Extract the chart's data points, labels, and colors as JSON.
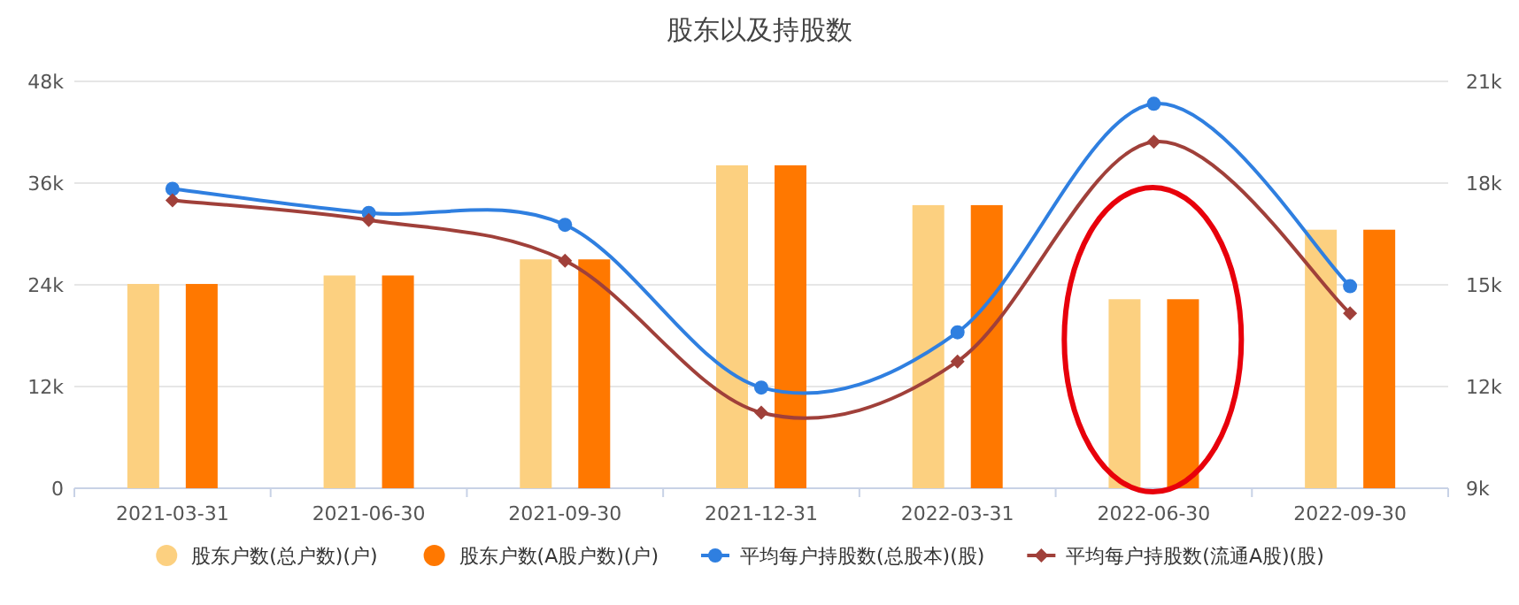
{
  "chart_data": {
    "type": "bar",
    "title": "股东以及持股数",
    "categories": [
      "2021-03-31",
      "2021-06-30",
      "2021-09-30",
      "2021-12-31",
      "2022-03-31",
      "2022-06-30",
      "2022-09-30"
    ],
    "series": [
      {
        "name": "股东户数(总户数)(户)",
        "color": "#fcd080",
        "values": [
          24100,
          25100,
          27000,
          38100,
          33400,
          22300,
          30500
        ]
      },
      {
        "name": "股东户数(A股户数)(户)",
        "color": "#ff7800",
        "values": [
          24100,
          25100,
          27000,
          38100,
          33400,
          22300,
          30500
        ]
      },
      {
        "name": "平均每户持股数(总股本)(股)",
        "type": "line",
        "axis": "y2",
        "marker": "circle",
        "color": "#2f7fe0",
        "values": [
          17830,
          17120,
          16770,
          11970,
          13600,
          20340,
          14960
        ]
      },
      {
        "name": "平均每户持股数(流通A股)(股)",
        "type": "line",
        "axis": "y2",
        "marker": "diamond",
        "color": "#a0403a",
        "values": [
          17490,
          16910,
          15710,
          11230,
          12740,
          19220,
          14160
        ]
      }
    ],
    "ylim": [
      0,
      48000
    ],
    "yticks": [
      {
        "value": 0,
        "label": "0"
      },
      {
        "value": 12000,
        "label": "12k"
      },
      {
        "value": 24000,
        "label": "24k"
      },
      {
        "value": 36000,
        "label": "36k"
      },
      {
        "value": 48000,
        "label": "48k"
      }
    ],
    "y2lim": [
      9000,
      21000
    ],
    "y2ticks": [
      {
        "value": 9000,
        "label": "9k"
      },
      {
        "value": 12000,
        "label": "12k"
      },
      {
        "value": 15000,
        "label": "15k"
      },
      {
        "value": 18000,
        "label": "18k"
      },
      {
        "value": 21000,
        "label": "21k"
      }
    ],
    "grid": "y",
    "legend": "bottom"
  }
}
